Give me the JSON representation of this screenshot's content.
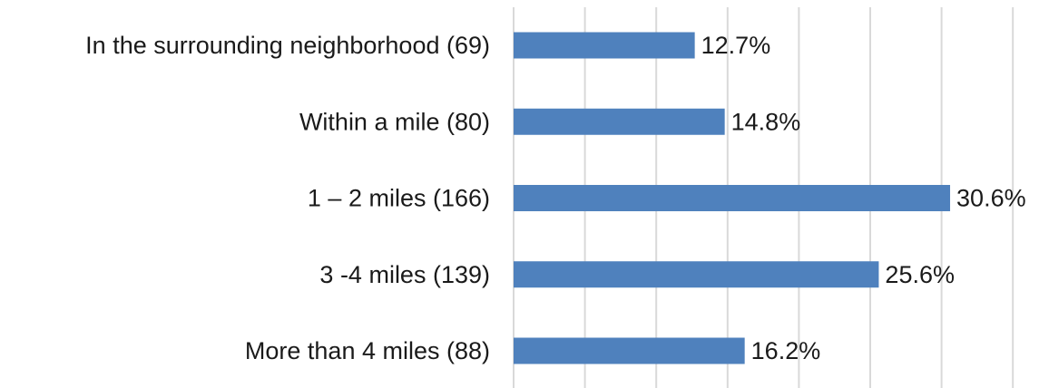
{
  "chart_data": {
    "type": "bar",
    "orientation": "horizontal",
    "categories": [
      "In the surrounding neighborhood (69)",
      "Within a mile (80)",
      "1 – 2 miles (166)",
      "3 -4 miles (139)",
      "More than 4 miles (88)"
    ],
    "values": [
      12.7,
      14.8,
      30.6,
      25.6,
      16.2
    ],
    "value_labels": [
      "12.7%",
      "14.8%",
      "30.6%",
      "25.6%",
      "16.2%"
    ],
    "xlim": [
      0,
      35
    ],
    "x_gridline_step": 5,
    "grid": true,
    "title": "",
    "xlabel": "",
    "ylabel": "",
    "bar_color": "#4f81bd",
    "gridline_color": "#d9d9d9",
    "text_color": "#1a1a1a"
  }
}
